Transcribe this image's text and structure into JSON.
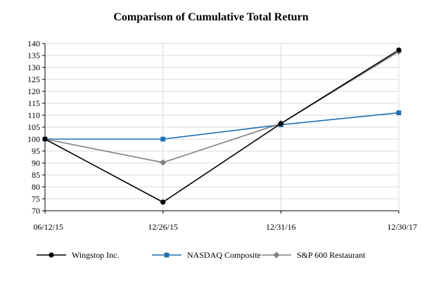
{
  "chart_data": {
    "type": "line",
    "title": "Comparison of Cumulative Total Return",
    "categories": [
      "06/12/15",
      "12/26/15",
      "12/31/16",
      "12/30/17"
    ],
    "yticks": [
      70,
      75,
      80,
      85,
      90,
      95,
      100,
      105,
      110,
      115,
      120,
      125,
      130,
      135,
      140
    ],
    "ylim": [
      70,
      140
    ],
    "grid": true,
    "legend_position": "bottom",
    "series": [
      {
        "name": "Wingstop Inc.",
        "values": [
          100,
          73.6,
          106.5,
          137.3
        ],
        "color": "#000000",
        "marker": "circle"
      },
      {
        "name": "NASDAQ Composite",
        "values": [
          100,
          100,
          106,
          111
        ],
        "color": "#1f6fb4",
        "marker": "square"
      },
      {
        "name": "S&P 600 Restaurant",
        "values": [
          100,
          90.2,
          106.5,
          136.6
        ],
        "color": "#808080",
        "marker": "diamond"
      }
    ]
  }
}
